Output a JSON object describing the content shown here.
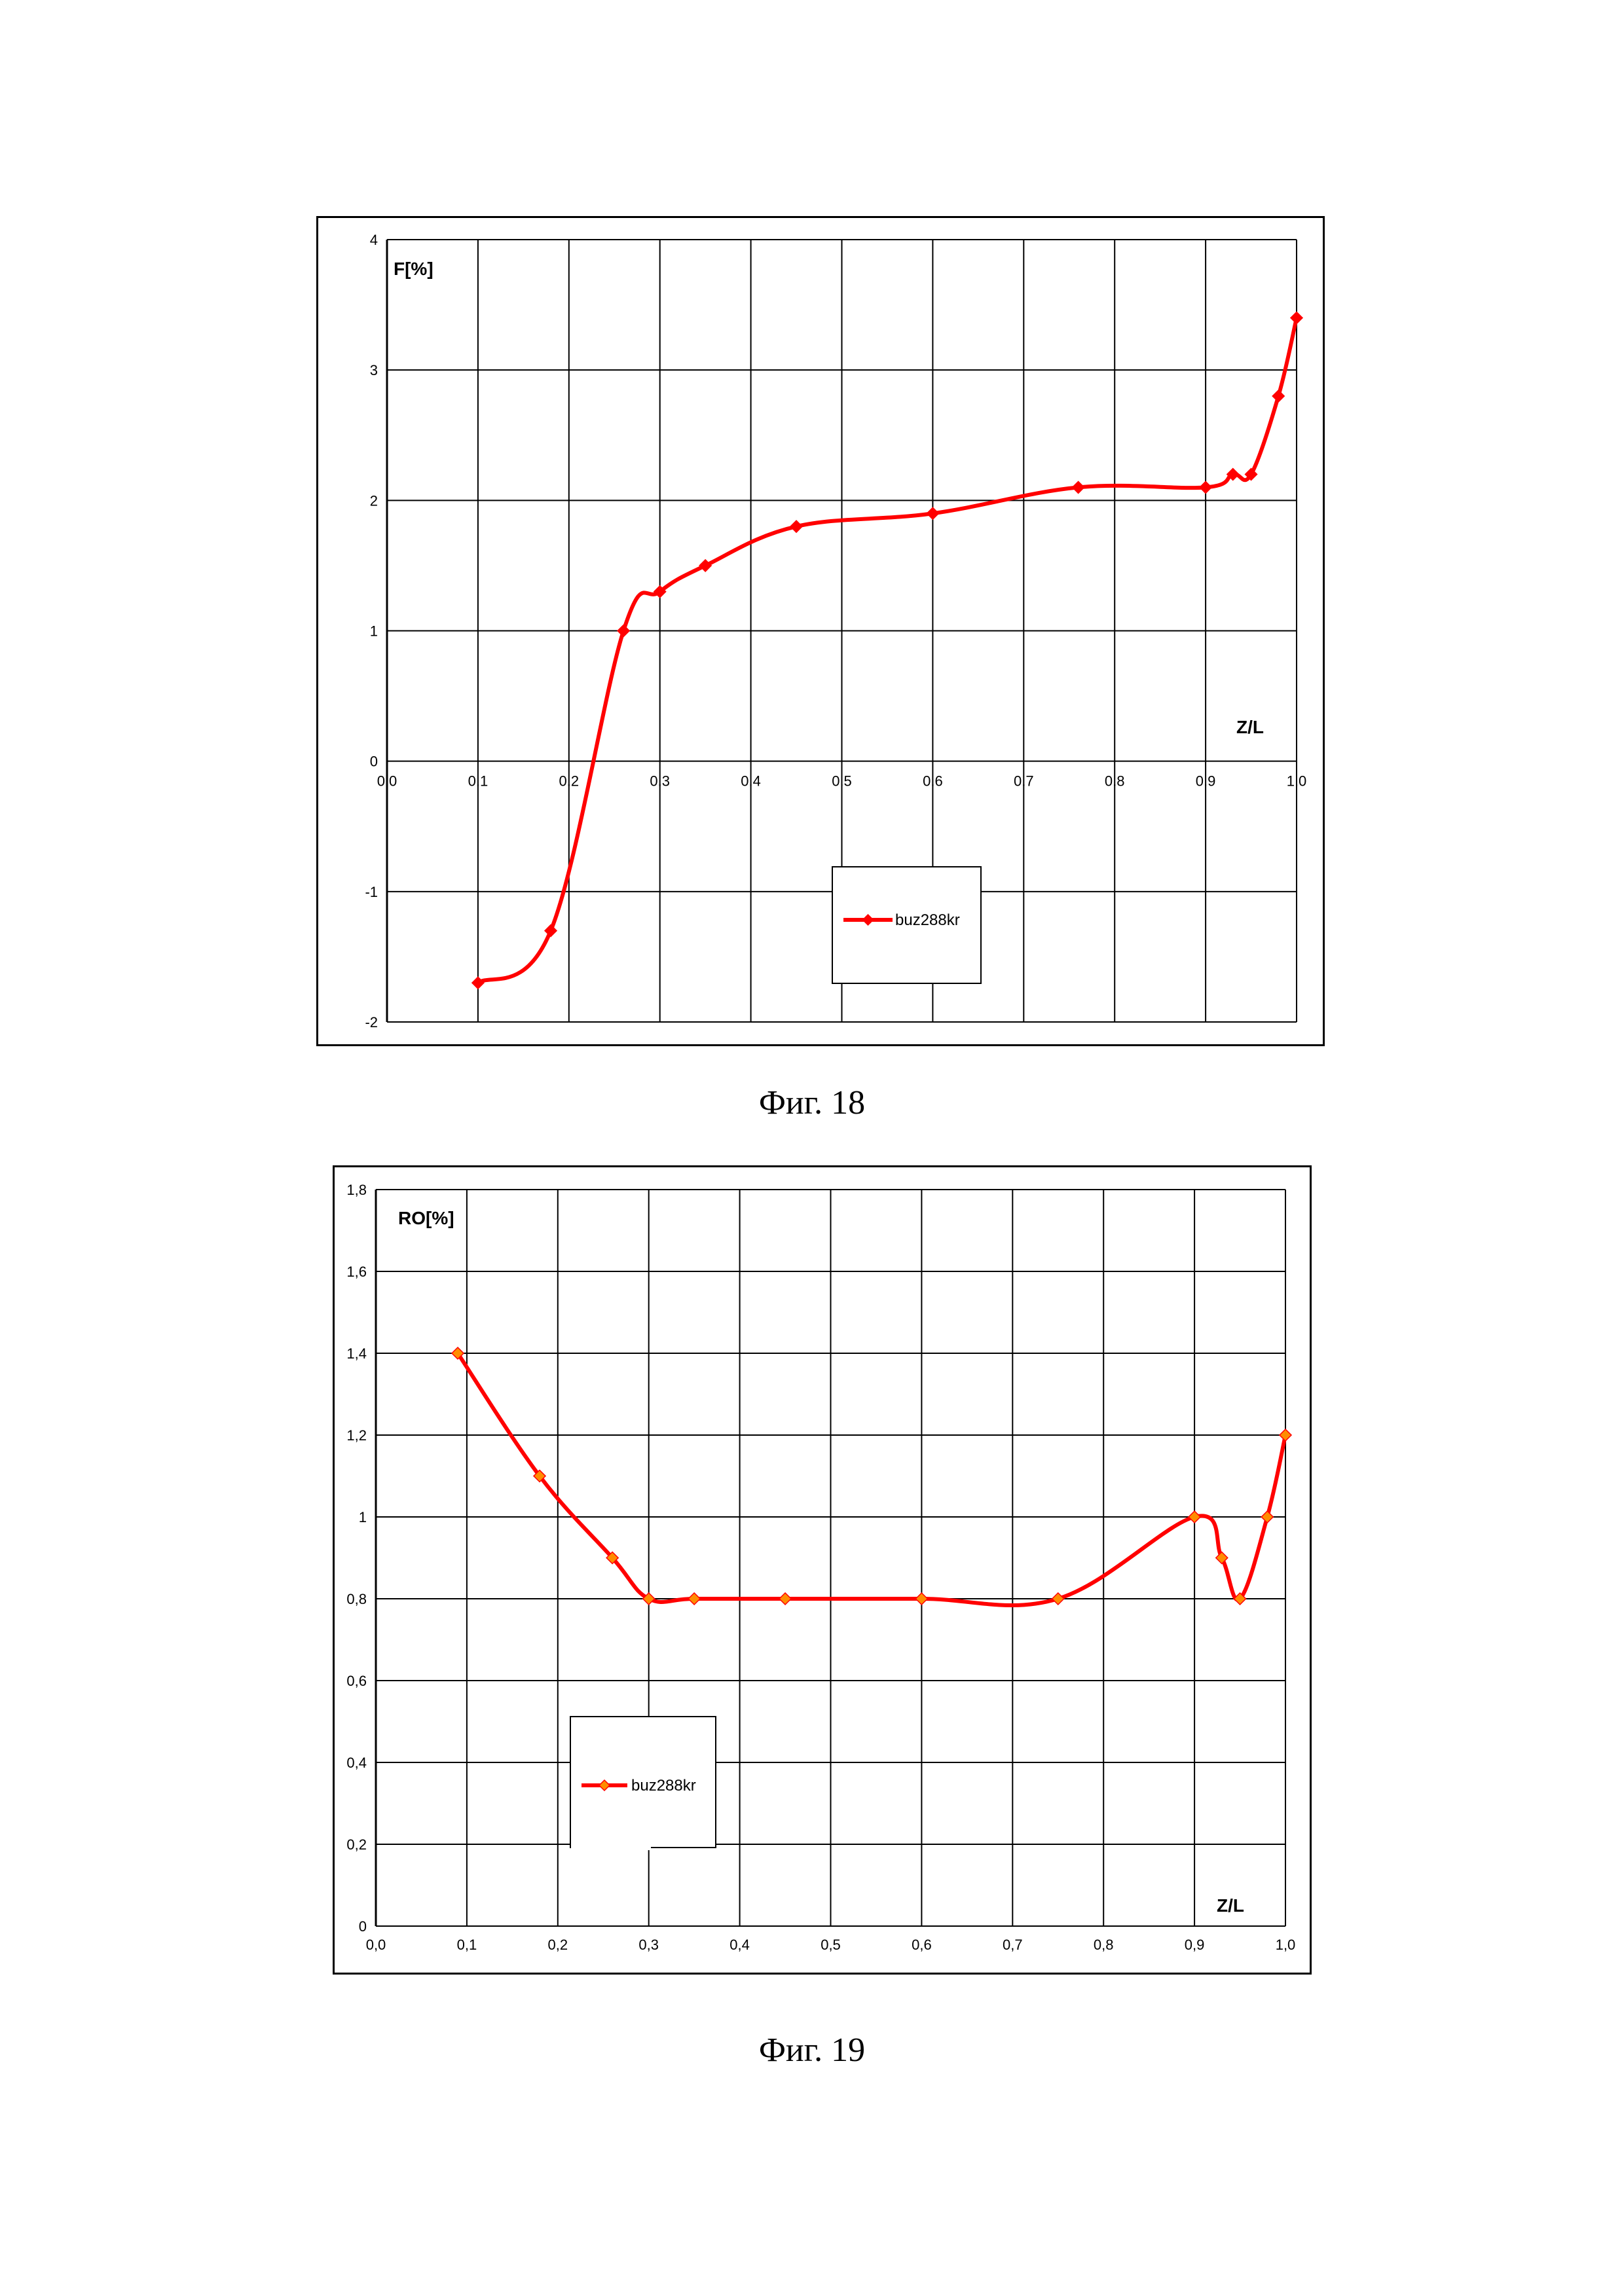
{
  "chart_data": [
    {
      "type": "line",
      "title": "",
      "ylabel": "F[%]",
      "xlabel": "Z/L",
      "x_tick_labels": [
        "0.0",
        "0.1",
        "0.2",
        "0.3",
        "0.4",
        "0.5",
        "0.6",
        "0.7",
        "0.8",
        "0.9",
        "1.0"
      ],
      "y_tick_labels": [
        "-2",
        "-1",
        "0",
        "1",
        "2",
        "3",
        "4"
      ],
      "xlim": [
        0,
        1
      ],
      "ylim": [
        -2,
        4
      ],
      "grid": true,
      "legend_position": "bottom-center",
      "series": [
        {
          "name": "buz288kr",
          "color": "#ff0000",
          "x": [
            0.1,
            0.18,
            0.26,
            0.3,
            0.35,
            0.45,
            0.6,
            0.76,
            0.9,
            0.93,
            0.95,
            0.98,
            1.0
          ],
          "y": [
            -1.7,
            -1.3,
            1.0,
            1.3,
            1.5,
            1.8,
            1.9,
            2.1,
            2.1,
            2.2,
            2.2,
            2.8,
            3.4
          ]
        }
      ]
    },
    {
      "type": "line",
      "title": "",
      "ylabel": "RO[%]",
      "xlabel": "Z/L",
      "x_tick_labels": [
        "0,0",
        "0,1",
        "0,2",
        "0,3",
        "0,4",
        "0,5",
        "0,6",
        "0,7",
        "0,8",
        "0,9",
        "1,0"
      ],
      "y_tick_labels": [
        "0",
        "0,2",
        "0,4",
        "0,6",
        "0,8",
        "1",
        "1,2",
        "1,4",
        "1,6",
        "1,8"
      ],
      "xlim": [
        0,
        1
      ],
      "ylim": [
        0,
        1.8
      ],
      "grid": true,
      "legend_position": "bottom-left",
      "series": [
        {
          "name": "buz288kr",
          "color": "#ff0000",
          "marker_color": "#ff8c00",
          "x": [
            0.09,
            0.18,
            0.26,
            0.3,
            0.35,
            0.45,
            0.6,
            0.75,
            0.9,
            0.93,
            0.95,
            0.98,
            1.0
          ],
          "y": [
            1.4,
            1.1,
            0.9,
            0.8,
            0.8,
            0.8,
            0.8,
            0.8,
            1.0,
            0.9,
            0.8,
            1.0,
            1.2
          ]
        }
      ]
    }
  ],
  "captions": {
    "fig18": "Фиг. 18",
    "fig19": "Фиг. 19"
  }
}
